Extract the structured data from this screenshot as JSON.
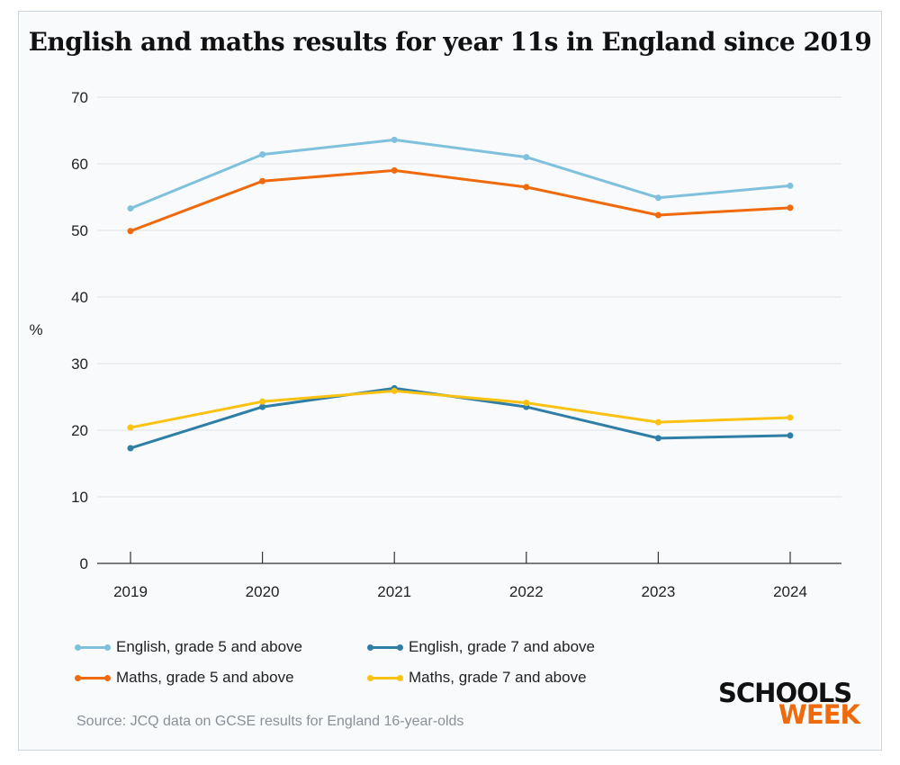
{
  "chart_data": {
    "type": "line",
    "title": "English and maths results for year 11s in England since 2019",
    "ylabel": "%",
    "xlabel": "",
    "x": [
      "2019",
      "2020",
      "2021",
      "2022",
      "2023",
      "2024"
    ],
    "ylim": [
      0,
      70
    ],
    "yticks": [
      0,
      10,
      20,
      30,
      40,
      50,
      60,
      70
    ],
    "grid": true,
    "legend_position": "bottom",
    "series": [
      {
        "name": "English, grade 5 and above",
        "color": "#7fc1dc",
        "values": [
          53.3,
          61.4,
          63.6,
          61.0,
          54.9,
          56.7
        ]
      },
      {
        "name": "English, grade 7 and above",
        "color": "#2f7ea6",
        "values": [
          17.3,
          23.5,
          26.3,
          23.5,
          18.8,
          19.2
        ]
      },
      {
        "name": "Maths, grade 5 and above",
        "color": "#ee6a0c",
        "values": [
          49.9,
          57.4,
          59.0,
          56.5,
          52.3,
          53.4
        ]
      },
      {
        "name": "Maths, grade 7 and above",
        "color": "#fbc212",
        "values": [
          20.4,
          24.3,
          25.9,
          24.1,
          21.2,
          21.9
        ]
      }
    ]
  },
  "source": "Source: JCQ data on GCSE results for England 16-year-olds",
  "logo": {
    "line1": "SCHOOLS",
    "line2": "WEEK"
  }
}
